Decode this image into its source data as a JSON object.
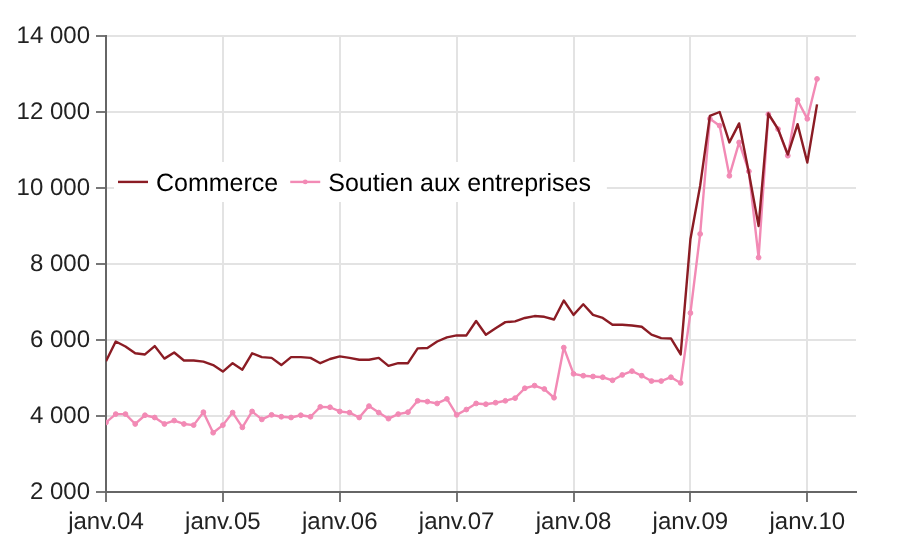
{
  "chart_data": {
    "type": "line",
    "x": [
      "2004-01",
      "2004-02",
      "2004-03",
      "2004-04",
      "2004-05",
      "2004-06",
      "2004-07",
      "2004-08",
      "2004-09",
      "2004-10",
      "2004-11",
      "2004-12",
      "2005-01",
      "2005-02",
      "2005-03",
      "2005-04",
      "2005-05",
      "2005-06",
      "2005-07",
      "2005-08",
      "2005-09",
      "2005-10",
      "2005-11",
      "2005-12",
      "2006-01",
      "2006-02",
      "2006-03",
      "2006-04",
      "2006-05",
      "2006-06",
      "2006-07",
      "2006-08",
      "2006-09",
      "2006-10",
      "2006-11",
      "2006-12",
      "2007-01",
      "2007-02",
      "2007-03",
      "2007-04",
      "2007-05",
      "2007-06",
      "2007-07",
      "2007-08",
      "2007-09",
      "2007-10",
      "2007-11",
      "2007-12",
      "2008-01",
      "2008-02",
      "2008-03",
      "2008-04",
      "2008-05",
      "2008-06",
      "2008-07",
      "2008-08",
      "2008-09",
      "2008-10",
      "2008-11",
      "2008-12",
      "2009-01",
      "2009-02",
      "2009-03",
      "2009-04",
      "2009-05",
      "2009-06",
      "2009-07",
      "2009-08",
      "2009-09",
      "2009-10",
      "2009-11",
      "2009-12",
      "2010-01",
      "2010-02"
    ],
    "series": [
      {
        "name": "Commerce",
        "color": "#8b1c24",
        "marker": "none",
        "values": [
          5440,
          5960,
          5830,
          5650,
          5620,
          5840,
          5510,
          5670,
          5460,
          5460,
          5430,
          5340,
          5170,
          5390,
          5220,
          5650,
          5550,
          5530,
          5340,
          5550,
          5550,
          5530,
          5390,
          5500,
          5570,
          5530,
          5480,
          5480,
          5530,
          5320,
          5390,
          5390,
          5780,
          5790,
          5960,
          6070,
          6120,
          6120,
          6500,
          6140,
          6310,
          6470,
          6490,
          6580,
          6630,
          6610,
          6540,
          7040,
          6660,
          6940,
          6660,
          6580,
          6400,
          6400,
          6380,
          6350,
          6140,
          6050,
          6040,
          5620,
          8650,
          10060,
          11900,
          12000,
          11200,
          11700,
          10400,
          9000,
          11960,
          11550,
          10880,
          11680,
          10670,
          12200
        ]
      },
      {
        "name": "Soutien aux entreprises",
        "color": "#f28ab5",
        "marker": "circle",
        "values": [
          3830,
          4050,
          4050,
          3790,
          4020,
          3960,
          3790,
          3880,
          3790,
          3760,
          4100,
          3560,
          3760,
          4090,
          3700,
          4120,
          3910,
          4030,
          3980,
          3960,
          4020,
          3980,
          4240,
          4230,
          4120,
          4090,
          3960,
          4260,
          4090,
          3930,
          4050,
          4100,
          4400,
          4380,
          4330,
          4450,
          4030,
          4170,
          4330,
          4310,
          4350,
          4400,
          4470,
          4730,
          4800,
          4710,
          4480,
          5800,
          5110,
          5060,
          5040,
          5020,
          4940,
          5080,
          5180,
          5060,
          4920,
          4920,
          5020,
          4870,
          6710,
          8790,
          11820,
          11640,
          10320,
          11200,
          10440,
          8170,
          11940,
          11550,
          10850,
          12310,
          11820,
          12870
        ]
      }
    ],
    "xlim": [
      "2004-01",
      "2010-06"
    ],
    "xticks": [
      {
        "value": "2004-01",
        "label": "janv.04"
      },
      {
        "value": "2005-01",
        "label": "janv.05"
      },
      {
        "value": "2006-01",
        "label": "janv.06"
      },
      {
        "value": "2007-01",
        "label": "janv.07"
      },
      {
        "value": "2008-01",
        "label": "janv.08"
      },
      {
        "value": "2009-01",
        "label": "janv.09"
      },
      {
        "value": "2010-01",
        "label": "janv.10"
      }
    ],
    "ylim": [
      2000,
      14000
    ],
    "yticks": [
      {
        "value": 2000,
        "label": "2 000"
      },
      {
        "value": 4000,
        "label": "4 000"
      },
      {
        "value": 6000,
        "label": "6 000"
      },
      {
        "value": 8000,
        "label": "8 000"
      },
      {
        "value": 10000,
        "label": "10 000"
      },
      {
        "value": 12000,
        "label": "12 000"
      },
      {
        "value": 14000,
        "label": "14 000"
      }
    ],
    "grid": true,
    "legend": "top left",
    "line_style": "solid"
  }
}
